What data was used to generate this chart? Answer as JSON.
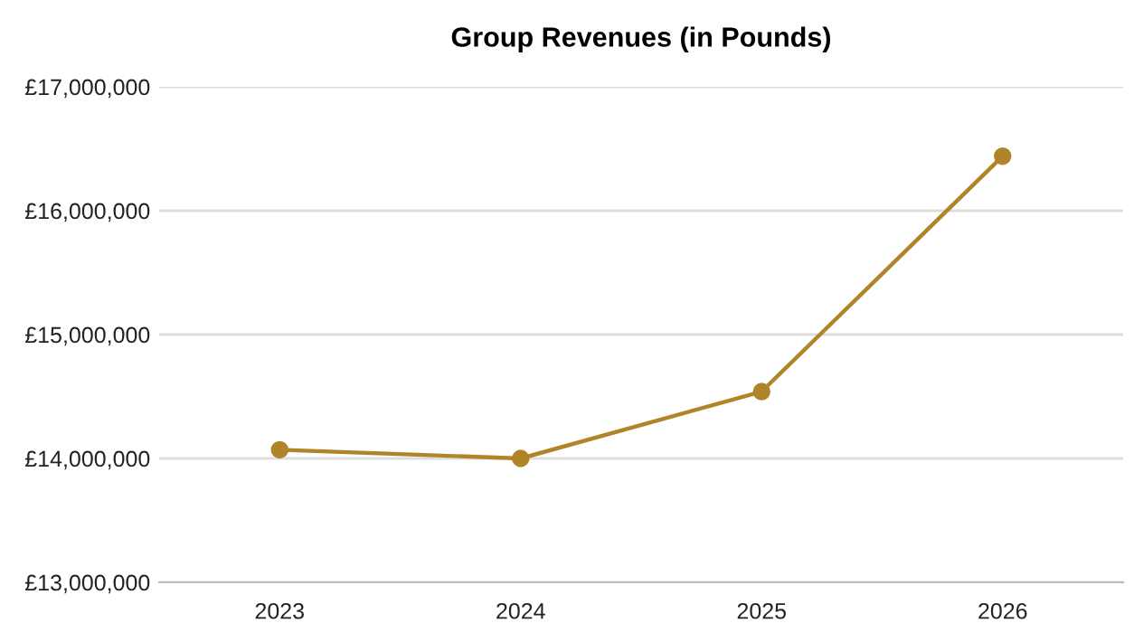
{
  "chart_data": {
    "type": "line",
    "title": "Group Revenues (in Pounds)",
    "categories": [
      "2023",
      "2024",
      "2025",
      "2026"
    ],
    "series": [
      {
        "color": "#b0852a",
        "values": [
          14070000,
          14000000,
          14540000,
          16440000
        ]
      }
    ],
    "ylim": [
      13000000,
      17000000
    ],
    "yticks": [
      {
        "value": 13000000,
        "label": "£13,000,000"
      },
      {
        "value": 14000000,
        "label": "£14,000,000"
      },
      {
        "value": 15000000,
        "label": "£15,000,000"
      },
      {
        "value": 16000000,
        "label": "£16,000,000"
      },
      {
        "value": 17000000,
        "label": "£17,000,000"
      }
    ],
    "grid": "y",
    "marker": "circle",
    "line_style": "solid"
  }
}
